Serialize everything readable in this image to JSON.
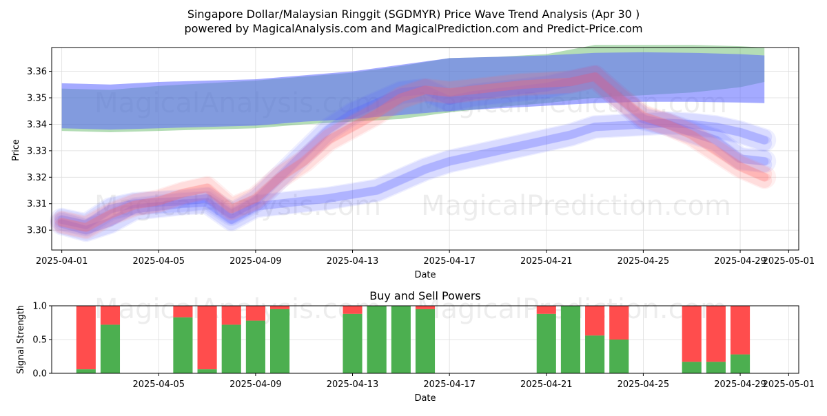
{
  "title_line1": "Singapore Dollar/Malaysian Ringgit (SGDMYR) Price Wave Trend Analysis (Apr 30 )",
  "title_line2": "powered by MagicalAnalysis.com and MagicalPrediction.com and Predict-Price.com",
  "watermarks": [
    "MagicalAnalysis.com",
    "MagicalPrediction.com"
  ],
  "colors": {
    "band_green": "#4caf50",
    "band_blue": "#5a64ff",
    "band_red": "#ff6b6b",
    "buy_green": "#4caf50",
    "sell_red": "#ff4d4d",
    "grid": "#dddddd"
  },
  "chart_data": [
    {
      "type": "area",
      "title": "",
      "xlabel": "Date",
      "ylabel": "Price",
      "x_ticks": [
        "2025-04-01",
        "2025-04-05",
        "2025-04-09",
        "2025-04-13",
        "2025-04-17",
        "2025-04-21",
        "2025-04-25",
        "2025-04-29",
        "2025-05-01"
      ],
      "y_ticks": [
        "3.30",
        "3.31",
        "3.32",
        "3.33",
        "3.34",
        "3.35",
        "3.36"
      ],
      "xlim": [
        "2025-03-31T14:00",
        "2025-05-01T10:00"
      ],
      "ylim": [
        3.2925,
        3.369
      ],
      "grid": true,
      "series": [
        {
          "color": "green",
          "x": [
            "2025-04-01",
            "2025-04-03",
            "2025-04-05",
            "2025-04-07",
            "2025-04-09",
            "2025-04-11",
            "2025-04-13",
            "2025-04-15",
            "2025-04-17",
            "2025-04-19",
            "2025-04-21",
            "2025-04-23",
            "2025-04-25",
            "2025-04-27",
            "2025-04-29",
            "2025-04-30"
          ],
          "upper": [
            3.3535,
            3.353,
            3.3545,
            3.3555,
            3.3565,
            3.358,
            3.3595,
            3.362,
            3.365,
            3.3655,
            3.3665,
            3.37,
            3.37,
            3.37,
            3.3695,
            3.369
          ],
          "lower": [
            3.3375,
            3.337,
            3.3375,
            3.338,
            3.3385,
            3.34,
            3.341,
            3.342,
            3.3445,
            3.3465,
            3.348,
            3.35,
            3.351,
            3.352,
            3.354,
            3.356
          ]
        },
        {
          "color": "blue",
          "x": [
            "2025-04-01",
            "2025-04-03",
            "2025-04-05",
            "2025-04-07",
            "2025-04-09",
            "2025-04-11",
            "2025-04-13",
            "2025-04-15",
            "2025-04-17",
            "2025-04-19",
            "2025-04-21",
            "2025-04-23",
            "2025-04-25",
            "2025-04-27",
            "2025-04-29",
            "2025-04-30"
          ],
          "upper": [
            3.3555,
            3.355,
            3.356,
            3.3565,
            3.357,
            3.3585,
            3.36,
            3.3625,
            3.365,
            3.3655,
            3.366,
            3.367,
            3.3672,
            3.367,
            3.3665,
            3.366
          ],
          "lower": [
            3.3385,
            3.338,
            3.3385,
            3.339,
            3.3395,
            3.341,
            3.342,
            3.3435,
            3.345,
            3.346,
            3.347,
            3.348,
            3.3485,
            3.3485,
            3.3482,
            3.348
          ]
        },
        {
          "color": "blue",
          "x": [
            "2025-04-01",
            "2025-04-02",
            "2025-04-03",
            "2025-04-04",
            "2025-04-05",
            "2025-04-06",
            "2025-04-07",
            "2025-04-08",
            "2025-04-09",
            "2025-04-10",
            "2025-04-11",
            "2025-04-12",
            "2025-04-13",
            "2025-04-14",
            "2025-04-15",
            "2025-04-16",
            "2025-04-17",
            "2025-04-18",
            "2025-04-19",
            "2025-04-20",
            "2025-04-21",
            "2025-04-22",
            "2025-04-23",
            "2025-04-24",
            "2025-04-25",
            "2025-04-26",
            "2025-04-27",
            "2025-04-28",
            "2025-04-29",
            "2025-04-30"
          ],
          "center": [
            3.3025,
            3.3,
            3.303,
            3.308,
            3.309,
            3.31,
            3.3105,
            3.304,
            3.309,
            3.31,
            3.311,
            3.312,
            3.3135,
            3.315,
            3.319,
            3.323,
            3.326,
            3.328,
            3.33,
            3.332,
            3.334,
            3.336,
            3.339,
            3.3395,
            3.34,
            3.3405,
            3.34,
            3.339,
            3.337,
            3.334
          ]
        },
        {
          "color": "blue",
          "x": [
            "2025-04-01",
            "2025-04-02",
            "2025-04-03",
            "2025-04-04",
            "2025-04-05",
            "2025-04-06",
            "2025-04-07",
            "2025-04-08",
            "2025-04-09",
            "2025-04-10",
            "2025-04-11",
            "2025-04-12",
            "2025-04-13",
            "2025-04-14",
            "2025-04-15",
            "2025-04-16",
            "2025-04-17",
            "2025-04-18",
            "2025-04-19",
            "2025-04-20",
            "2025-04-21",
            "2025-04-22",
            "2025-04-23",
            "2025-04-24",
            "2025-04-25",
            "2025-04-26",
            "2025-04-27",
            "2025-04-28",
            "2025-04-29",
            "2025-04-30"
          ],
          "center": [
            3.304,
            3.302,
            3.308,
            3.31,
            3.3105,
            3.311,
            3.312,
            3.306,
            3.311,
            3.32,
            3.329,
            3.338,
            3.344,
            3.348,
            3.352,
            3.353,
            3.349,
            3.351,
            3.352,
            3.353,
            3.354,
            3.356,
            3.358,
            3.35,
            3.342,
            3.34,
            3.337,
            3.334,
            3.327,
            3.326
          ]
        },
        {
          "color": "red",
          "x": [
            "2025-04-01",
            "2025-04-02",
            "2025-04-03",
            "2025-04-04",
            "2025-04-05",
            "2025-04-06",
            "2025-04-07",
            "2025-04-08",
            "2025-04-09",
            "2025-04-10",
            "2025-04-11",
            "2025-04-12",
            "2025-04-13",
            "2025-04-14",
            "2025-04-15",
            "2025-04-16",
            "2025-04-17",
            "2025-04-18",
            "2025-04-19",
            "2025-04-20",
            "2025-04-21",
            "2025-04-22",
            "2025-04-23",
            "2025-04-24",
            "2025-04-25",
            "2025-04-26",
            "2025-04-27",
            "2025-04-28",
            "2025-04-29",
            "2025-04-30"
          ],
          "center": [
            3.303,
            3.301,
            3.306,
            3.3095,
            3.311,
            3.314,
            3.316,
            3.308,
            3.312,
            3.32,
            3.326,
            3.334,
            3.339,
            3.344,
            3.35,
            3.353,
            3.352,
            3.353,
            3.354,
            3.355,
            3.3555,
            3.356,
            3.358,
            3.35,
            3.343,
            3.34,
            3.336,
            3.33,
            3.324,
            3.32
          ]
        }
      ]
    },
    {
      "type": "bar",
      "title": "Buy and Sell Powers",
      "xlabel": "Date",
      "ylabel": "Signal Strength",
      "x_ticks": [
        "2025-04-05",
        "2025-04-09",
        "2025-04-13",
        "2025-04-17",
        "2025-04-21",
        "2025-04-25",
        "2025-04-29",
        "2025-05-01"
      ],
      "y_ticks": [
        "0.0",
        "0.5",
        "1.0"
      ],
      "ylim": [
        0,
        1.0
      ],
      "grid": true,
      "categories": [
        "2025-04-02",
        "2025-04-03",
        "2025-04-06",
        "2025-04-07",
        "2025-04-08",
        "2025-04-09",
        "2025-04-10",
        "2025-04-13",
        "2025-04-14",
        "2025-04-15",
        "2025-04-16",
        "2025-04-21",
        "2025-04-22",
        "2025-04-23",
        "2025-04-24",
        "2025-04-27",
        "2025-04-28",
        "2025-04-29"
      ],
      "series": [
        {
          "name": "buy",
          "values": [
            0.06,
            0.72,
            0.83,
            0.06,
            0.72,
            0.78,
            0.95,
            0.88,
            1.0,
            1.0,
            0.95,
            0.88,
            1.0,
            0.56,
            0.5,
            0.17,
            0.17,
            0.28
          ]
        },
        {
          "name": "sell",
          "values": [
            0.94,
            0.28,
            0.17,
            0.94,
            0.28,
            0.22,
            0.05,
            0.12,
            0.0,
            0.0,
            0.05,
            0.12,
            0.0,
            0.44,
            0.5,
            0.83,
            0.83,
            0.72
          ]
        }
      ]
    }
  ]
}
